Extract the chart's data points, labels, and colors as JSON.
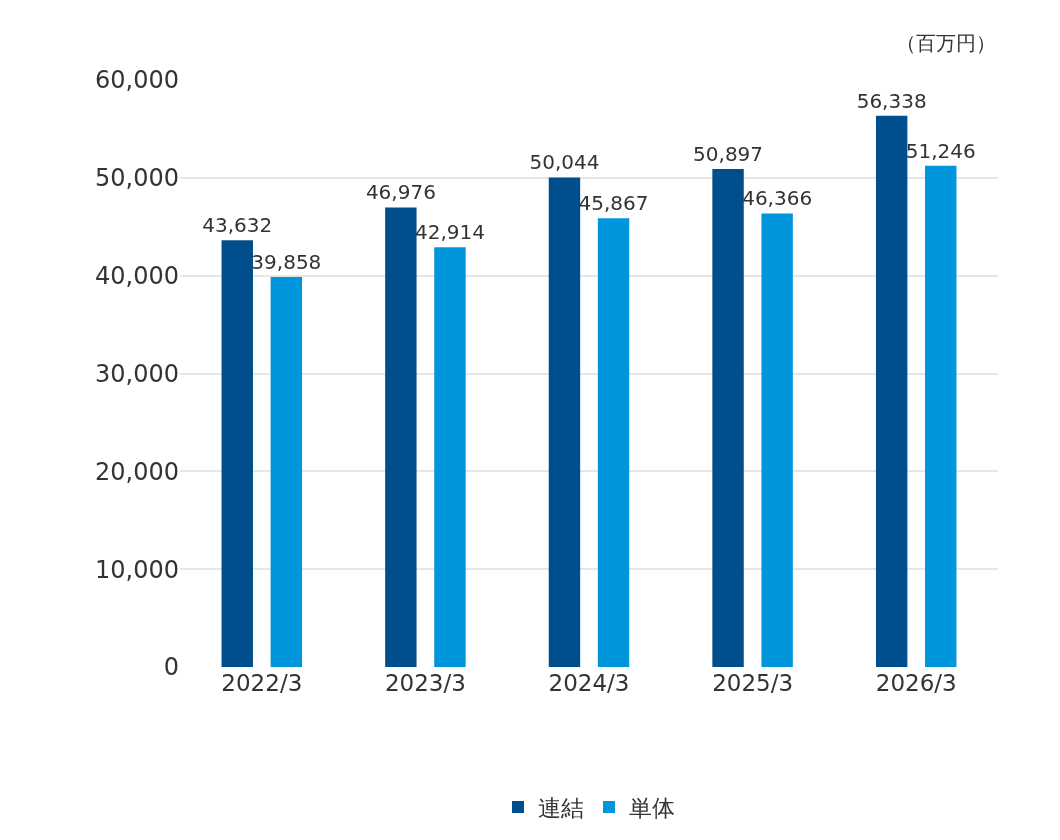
{
  "chart_data": {
    "type": "bar",
    "ylabel": "（百万円）",
    "categories": [
      "2022/3",
      "2023/3",
      "2024/3",
      "2025/3",
      "2026/3"
    ],
    "series": [
      {
        "name": "連結",
        "color": "#004f8c",
        "values": [
          43632,
          46976,
          50044,
          50897,
          56338
        ],
        "value_labels": [
          "43,632",
          "46,976",
          "50,044",
          "50,897",
          "56,338"
        ]
      },
      {
        "name": "単体",
        "color": "#0096dc",
        "values": [
          39858,
          42914,
          45867,
          46366,
          51246
        ],
        "value_labels": [
          "39,858",
          "42,914",
          "45,867",
          "46,366",
          "51,246"
        ]
      }
    ],
    "ylim": [
      0,
      60000
    ],
    "yticks": [
      {
        "value": 0,
        "label": "0"
      },
      {
        "value": 10000,
        "label": "10,000"
      },
      {
        "value": 20000,
        "label": "20,000"
      },
      {
        "value": 30000,
        "label": "30,000"
      },
      {
        "value": 40000,
        "label": "40,000"
      },
      {
        "value": 50000,
        "label": "50,000"
      },
      {
        "value": 60000,
        "label": "60,000"
      }
    ],
    "grid": "y",
    "legend": "bottom"
  }
}
